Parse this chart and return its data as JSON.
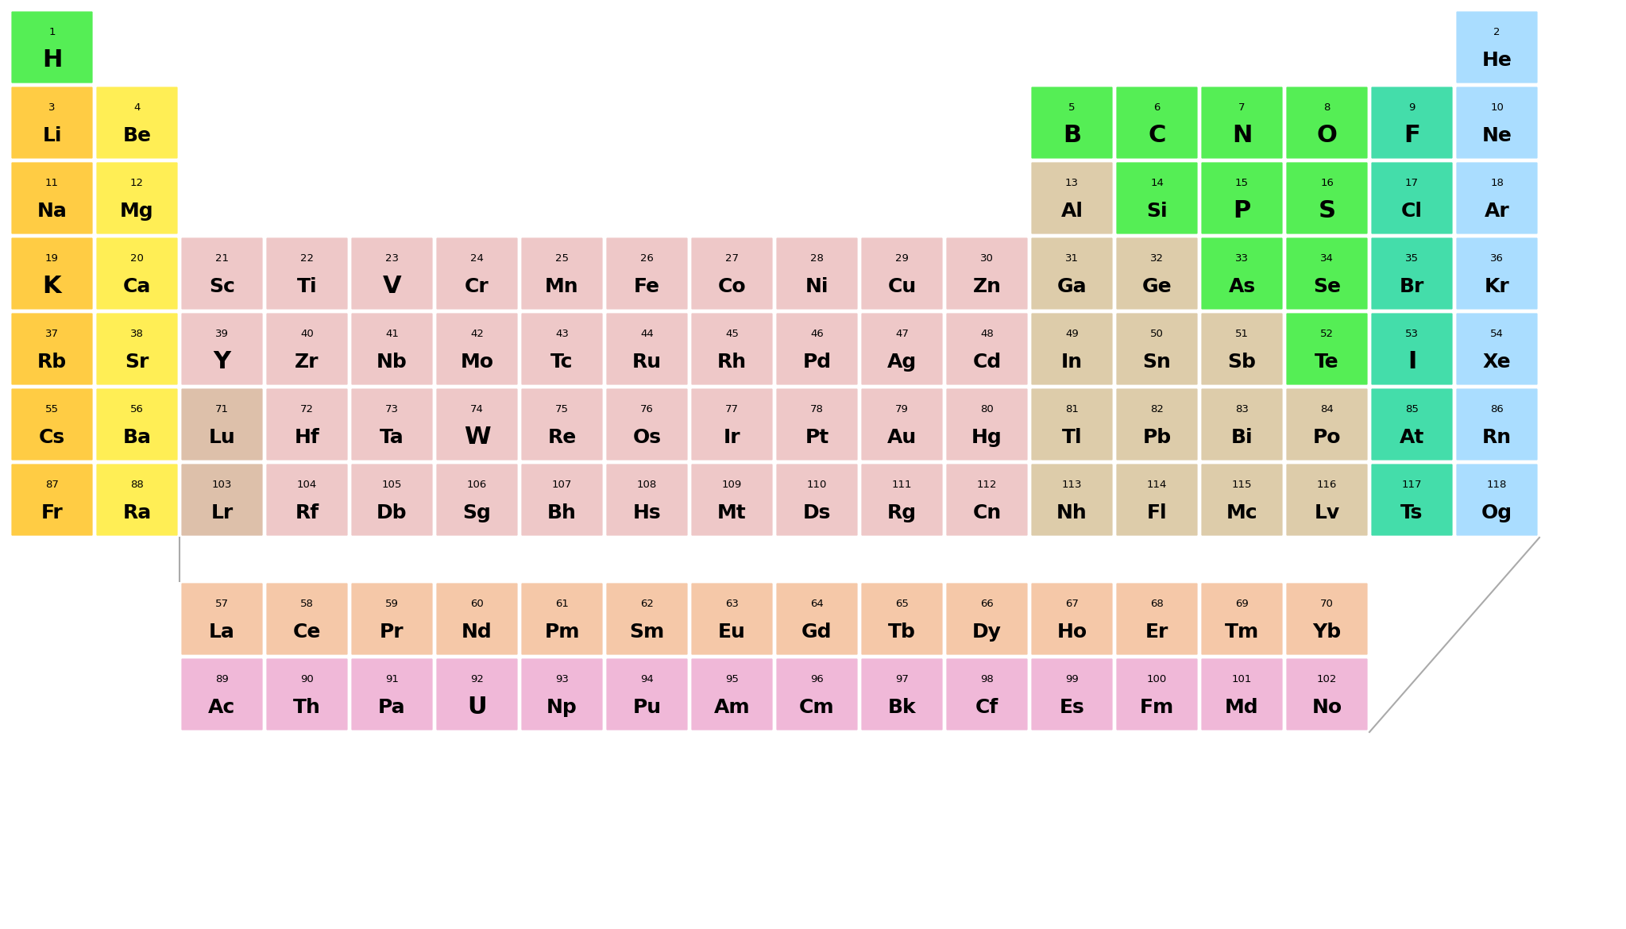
{
  "elements": [
    {
      "num": 1,
      "sym": "H",
      "col": 1,
      "row": 1,
      "color": "#55ee55"
    },
    {
      "num": 2,
      "sym": "He",
      "col": 18,
      "row": 1,
      "color": "#aaddff"
    },
    {
      "num": 3,
      "sym": "Li",
      "col": 1,
      "row": 2,
      "color": "#ffcc44"
    },
    {
      "num": 4,
      "sym": "Be",
      "col": 2,
      "row": 2,
      "color": "#ffee55"
    },
    {
      "num": 5,
      "sym": "B",
      "col": 13,
      "row": 2,
      "color": "#55ee55"
    },
    {
      "num": 6,
      "sym": "C",
      "col": 14,
      "row": 2,
      "color": "#55ee55"
    },
    {
      "num": 7,
      "sym": "N",
      "col": 15,
      "row": 2,
      "color": "#55ee55"
    },
    {
      "num": 8,
      "sym": "O",
      "col": 16,
      "row": 2,
      "color": "#55ee55"
    },
    {
      "num": 9,
      "sym": "F",
      "col": 17,
      "row": 2,
      "color": "#44ddaa"
    },
    {
      "num": 10,
      "sym": "Ne",
      "col": 18,
      "row": 2,
      "color": "#aaddff"
    },
    {
      "num": 11,
      "sym": "Na",
      "col": 1,
      "row": 3,
      "color": "#ffcc44"
    },
    {
      "num": 12,
      "sym": "Mg",
      "col": 2,
      "row": 3,
      "color": "#ffee55"
    },
    {
      "num": 13,
      "sym": "Al",
      "col": 13,
      "row": 3,
      "color": "#ddccaa"
    },
    {
      "num": 14,
      "sym": "Si",
      "col": 14,
      "row": 3,
      "color": "#55ee55"
    },
    {
      "num": 15,
      "sym": "P",
      "col": 15,
      "row": 3,
      "color": "#55ee55"
    },
    {
      "num": 16,
      "sym": "S",
      "col": 16,
      "row": 3,
      "color": "#55ee55"
    },
    {
      "num": 17,
      "sym": "Cl",
      "col": 17,
      "row": 3,
      "color": "#44ddaa"
    },
    {
      "num": 18,
      "sym": "Ar",
      "col": 18,
      "row": 3,
      "color": "#aaddff"
    },
    {
      "num": 19,
      "sym": "K",
      "col": 1,
      "row": 4,
      "color": "#ffcc44"
    },
    {
      "num": 20,
      "sym": "Ca",
      "col": 2,
      "row": 4,
      "color": "#ffee55"
    },
    {
      "num": 21,
      "sym": "Sc",
      "col": 3,
      "row": 4,
      "color": "#eec8c8"
    },
    {
      "num": 22,
      "sym": "Ti",
      "col": 4,
      "row": 4,
      "color": "#eec8c8"
    },
    {
      "num": 23,
      "sym": "V",
      "col": 5,
      "row": 4,
      "color": "#eec8c8"
    },
    {
      "num": 24,
      "sym": "Cr",
      "col": 6,
      "row": 4,
      "color": "#eec8c8"
    },
    {
      "num": 25,
      "sym": "Mn",
      "col": 7,
      "row": 4,
      "color": "#eec8c8"
    },
    {
      "num": 26,
      "sym": "Fe",
      "col": 8,
      "row": 4,
      "color": "#eec8c8"
    },
    {
      "num": 27,
      "sym": "Co",
      "col": 9,
      "row": 4,
      "color": "#eec8c8"
    },
    {
      "num": 28,
      "sym": "Ni",
      "col": 10,
      "row": 4,
      "color": "#eec8c8"
    },
    {
      "num": 29,
      "sym": "Cu",
      "col": 11,
      "row": 4,
      "color": "#eec8c8"
    },
    {
      "num": 30,
      "sym": "Zn",
      "col": 12,
      "row": 4,
      "color": "#eec8c8"
    },
    {
      "num": 31,
      "sym": "Ga",
      "col": 13,
      "row": 4,
      "color": "#ddccaa"
    },
    {
      "num": 32,
      "sym": "Ge",
      "col": 14,
      "row": 4,
      "color": "#ddccaa"
    },
    {
      "num": 33,
      "sym": "As",
      "col": 15,
      "row": 4,
      "color": "#55ee55"
    },
    {
      "num": 34,
      "sym": "Se",
      "col": 16,
      "row": 4,
      "color": "#55ee55"
    },
    {
      "num": 35,
      "sym": "Br",
      "col": 17,
      "row": 4,
      "color": "#44ddaa"
    },
    {
      "num": 36,
      "sym": "Kr",
      "col": 18,
      "row": 4,
      "color": "#aaddff"
    },
    {
      "num": 37,
      "sym": "Rb",
      "col": 1,
      "row": 5,
      "color": "#ffcc44"
    },
    {
      "num": 38,
      "sym": "Sr",
      "col": 2,
      "row": 5,
      "color": "#ffee55"
    },
    {
      "num": 39,
      "sym": "Y",
      "col": 3,
      "row": 5,
      "color": "#eec8c8"
    },
    {
      "num": 40,
      "sym": "Zr",
      "col": 4,
      "row": 5,
      "color": "#eec8c8"
    },
    {
      "num": 41,
      "sym": "Nb",
      "col": 5,
      "row": 5,
      "color": "#eec8c8"
    },
    {
      "num": 42,
      "sym": "Mo",
      "col": 6,
      "row": 5,
      "color": "#eec8c8"
    },
    {
      "num": 43,
      "sym": "Tc",
      "col": 7,
      "row": 5,
      "color": "#eec8c8"
    },
    {
      "num": 44,
      "sym": "Ru",
      "col": 8,
      "row": 5,
      "color": "#eec8c8"
    },
    {
      "num": 45,
      "sym": "Rh",
      "col": 9,
      "row": 5,
      "color": "#eec8c8"
    },
    {
      "num": 46,
      "sym": "Pd",
      "col": 10,
      "row": 5,
      "color": "#eec8c8"
    },
    {
      "num": 47,
      "sym": "Ag",
      "col": 11,
      "row": 5,
      "color": "#eec8c8"
    },
    {
      "num": 48,
      "sym": "Cd",
      "col": 12,
      "row": 5,
      "color": "#eec8c8"
    },
    {
      "num": 49,
      "sym": "In",
      "col": 13,
      "row": 5,
      "color": "#ddccaa"
    },
    {
      "num": 50,
      "sym": "Sn",
      "col": 14,
      "row": 5,
      "color": "#ddccaa"
    },
    {
      "num": 51,
      "sym": "Sb",
      "col": 15,
      "row": 5,
      "color": "#ddccaa"
    },
    {
      "num": 52,
      "sym": "Te",
      "col": 16,
      "row": 5,
      "color": "#55ee55"
    },
    {
      "num": 53,
      "sym": "I",
      "col": 17,
      "row": 5,
      "color": "#44ddaa"
    },
    {
      "num": 54,
      "sym": "Xe",
      "col": 18,
      "row": 5,
      "color": "#aaddff"
    },
    {
      "num": 55,
      "sym": "Cs",
      "col": 1,
      "row": 6,
      "color": "#ffcc44"
    },
    {
      "num": 56,
      "sym": "Ba",
      "col": 2,
      "row": 6,
      "color": "#ffee55"
    },
    {
      "num": 71,
      "sym": "Lu",
      "col": 3,
      "row": 6,
      "color": "#ddc0aa"
    },
    {
      "num": 72,
      "sym": "Hf",
      "col": 4,
      "row": 6,
      "color": "#eec8c8"
    },
    {
      "num": 73,
      "sym": "Ta",
      "col": 5,
      "row": 6,
      "color": "#eec8c8"
    },
    {
      "num": 74,
      "sym": "W",
      "col": 6,
      "row": 6,
      "color": "#eec8c8"
    },
    {
      "num": 75,
      "sym": "Re",
      "col": 7,
      "row": 6,
      "color": "#eec8c8"
    },
    {
      "num": 76,
      "sym": "Os",
      "col": 8,
      "row": 6,
      "color": "#eec8c8"
    },
    {
      "num": 77,
      "sym": "Ir",
      "col": 9,
      "row": 6,
      "color": "#eec8c8"
    },
    {
      "num": 78,
      "sym": "Pt",
      "col": 10,
      "row": 6,
      "color": "#eec8c8"
    },
    {
      "num": 79,
      "sym": "Au",
      "col": 11,
      "row": 6,
      "color": "#eec8c8"
    },
    {
      "num": 80,
      "sym": "Hg",
      "col": 12,
      "row": 6,
      "color": "#eec8c8"
    },
    {
      "num": 81,
      "sym": "Tl",
      "col": 13,
      "row": 6,
      "color": "#ddccaa"
    },
    {
      "num": 82,
      "sym": "Pb",
      "col": 14,
      "row": 6,
      "color": "#ddccaa"
    },
    {
      "num": 83,
      "sym": "Bi",
      "col": 15,
      "row": 6,
      "color": "#ddccaa"
    },
    {
      "num": 84,
      "sym": "Po",
      "col": 16,
      "row": 6,
      "color": "#ddccaa"
    },
    {
      "num": 85,
      "sym": "At",
      "col": 17,
      "row": 6,
      "color": "#44ddaa"
    },
    {
      "num": 86,
      "sym": "Rn",
      "col": 18,
      "row": 6,
      "color": "#aaddff"
    },
    {
      "num": 87,
      "sym": "Fr",
      "col": 1,
      "row": 7,
      "color": "#ffcc44"
    },
    {
      "num": 88,
      "sym": "Ra",
      "col": 2,
      "row": 7,
      "color": "#ffee55"
    },
    {
      "num": 103,
      "sym": "Lr",
      "col": 3,
      "row": 7,
      "color": "#ddc0aa"
    },
    {
      "num": 104,
      "sym": "Rf",
      "col": 4,
      "row": 7,
      "color": "#eec8c8"
    },
    {
      "num": 105,
      "sym": "Db",
      "col": 5,
      "row": 7,
      "color": "#eec8c8"
    },
    {
      "num": 106,
      "sym": "Sg",
      "col": 6,
      "row": 7,
      "color": "#eec8c8"
    },
    {
      "num": 107,
      "sym": "Bh",
      "col": 7,
      "row": 7,
      "color": "#eec8c8"
    },
    {
      "num": 108,
      "sym": "Hs",
      "col": 8,
      "row": 7,
      "color": "#eec8c8"
    },
    {
      "num": 109,
      "sym": "Mt",
      "col": 9,
      "row": 7,
      "color": "#eec8c8"
    },
    {
      "num": 110,
      "sym": "Ds",
      "col": 10,
      "row": 7,
      "color": "#eec8c8"
    },
    {
      "num": 111,
      "sym": "Rg",
      "col": 11,
      "row": 7,
      "color": "#eec8c8"
    },
    {
      "num": 112,
      "sym": "Cn",
      "col": 12,
      "row": 7,
      "color": "#eec8c8"
    },
    {
      "num": 113,
      "sym": "Nh",
      "col": 13,
      "row": 7,
      "color": "#ddccaa"
    },
    {
      "num": 114,
      "sym": "Fl",
      "col": 14,
      "row": 7,
      "color": "#ddccaa"
    },
    {
      "num": 115,
      "sym": "Mc",
      "col": 15,
      "row": 7,
      "color": "#ddccaa"
    },
    {
      "num": 116,
      "sym": "Lv",
      "col": 16,
      "row": 7,
      "color": "#ddccaa"
    },
    {
      "num": 117,
      "sym": "Ts",
      "col": 17,
      "row": 7,
      "color": "#44ddaa"
    },
    {
      "num": 118,
      "sym": "Og",
      "col": 18,
      "row": 7,
      "color": "#aaddff"
    },
    {
      "num": 57,
      "sym": "La",
      "col": 3,
      "row": 9,
      "color": "#f5c8a8"
    },
    {
      "num": 58,
      "sym": "Ce",
      "col": 4,
      "row": 9,
      "color": "#f5c8a8"
    },
    {
      "num": 59,
      "sym": "Pr",
      "col": 5,
      "row": 9,
      "color": "#f5c8a8"
    },
    {
      "num": 60,
      "sym": "Nd",
      "col": 6,
      "row": 9,
      "color": "#f5c8a8"
    },
    {
      "num": 61,
      "sym": "Pm",
      "col": 7,
      "row": 9,
      "color": "#f5c8a8"
    },
    {
      "num": 62,
      "sym": "Sm",
      "col": 8,
      "row": 9,
      "color": "#f5c8a8"
    },
    {
      "num": 63,
      "sym": "Eu",
      "col": 9,
      "row": 9,
      "color": "#f5c8a8"
    },
    {
      "num": 64,
      "sym": "Gd",
      "col": 10,
      "row": 9,
      "color": "#f5c8a8"
    },
    {
      "num": 65,
      "sym": "Tb",
      "col": 11,
      "row": 9,
      "color": "#f5c8a8"
    },
    {
      "num": 66,
      "sym": "Dy",
      "col": 12,
      "row": 9,
      "color": "#f5c8a8"
    },
    {
      "num": 67,
      "sym": "Ho",
      "col": 13,
      "row": 9,
      "color": "#f5c8a8"
    },
    {
      "num": 68,
      "sym": "Er",
      "col": 14,
      "row": 9,
      "color": "#f5c8a8"
    },
    {
      "num": 69,
      "sym": "Tm",
      "col": 15,
      "row": 9,
      "color": "#f5c8a8"
    },
    {
      "num": 70,
      "sym": "Yb",
      "col": 16,
      "row": 9,
      "color": "#f5c8a8"
    },
    {
      "num": 89,
      "sym": "Ac",
      "col": 3,
      "row": 10,
      "color": "#f0b8d8"
    },
    {
      "num": 90,
      "sym": "Th",
      "col": 4,
      "row": 10,
      "color": "#f0b8d8"
    },
    {
      "num": 91,
      "sym": "Pa",
      "col": 5,
      "row": 10,
      "color": "#f0b8d8"
    },
    {
      "num": 92,
      "sym": "U",
      "col": 6,
      "row": 10,
      "color": "#f0b8d8"
    },
    {
      "num": 93,
      "sym": "Np",
      "col": 7,
      "row": 10,
      "color": "#f0b8d8"
    },
    {
      "num": 94,
      "sym": "Pu",
      "col": 8,
      "row": 10,
      "color": "#f0b8d8"
    },
    {
      "num": 95,
      "sym": "Am",
      "col": 9,
      "row": 10,
      "color": "#f0b8d8"
    },
    {
      "num": 96,
      "sym": "Cm",
      "col": 10,
      "row": 10,
      "color": "#f0b8d8"
    },
    {
      "num": 97,
      "sym": "Bk",
      "col": 11,
      "row": 10,
      "color": "#f0b8d8"
    },
    {
      "num": 98,
      "sym": "Cf",
      "col": 12,
      "row": 10,
      "color": "#f0b8d8"
    },
    {
      "num": 99,
      "sym": "Es",
      "col": 13,
      "row": 10,
      "color": "#f0b8d8"
    },
    {
      "num": 100,
      "sym": "Fm",
      "col": 14,
      "row": 10,
      "color": "#f0b8d8"
    },
    {
      "num": 101,
      "sym": "Md",
      "col": 15,
      "row": 10,
      "color": "#f0b8d8"
    },
    {
      "num": 102,
      "sym": "No",
      "col": 16,
      "row": 10,
      "color": "#f0b8d8"
    }
  ],
  "bg_color": "#ffffff",
  "text_color": "#000000"
}
